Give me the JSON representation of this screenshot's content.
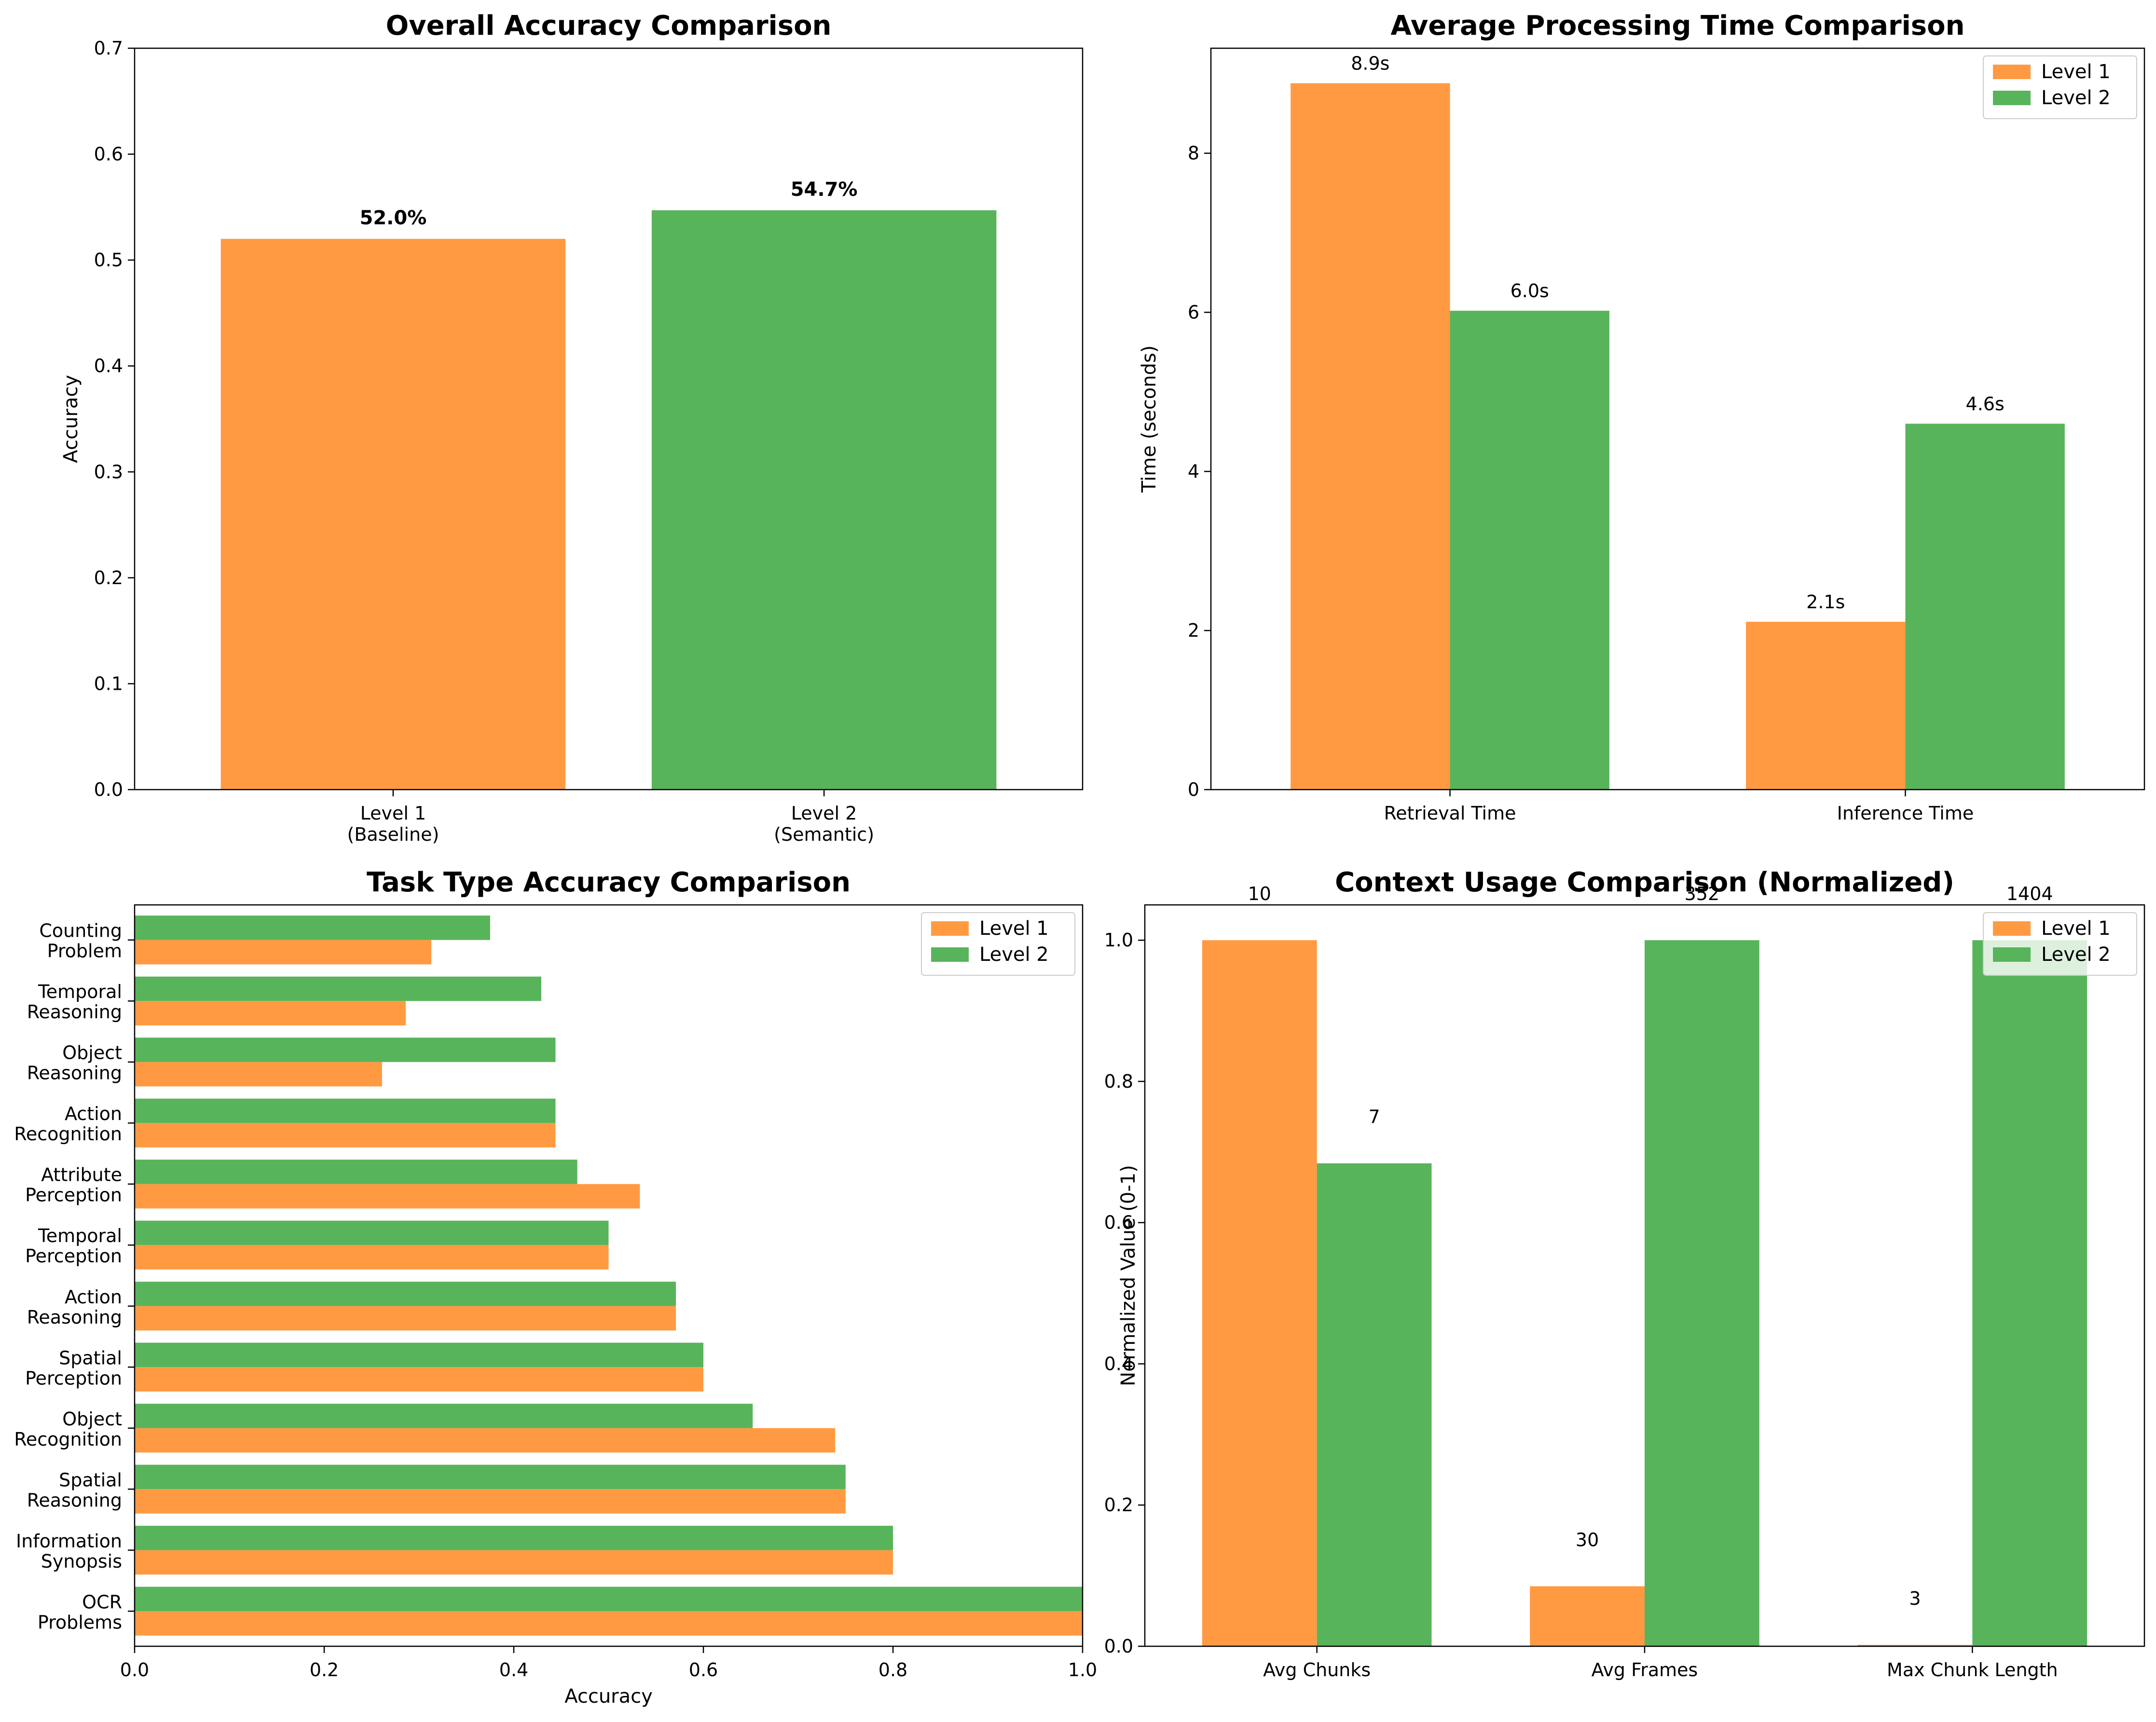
{
  "colors": {
    "level1": "#ff9a42",
    "level2": "#58b45a"
  },
  "chart_data": [
    {
      "id": "overall",
      "type": "bar",
      "title": "Overall Accuracy Comparison",
      "xlabel": "",
      "ylabel": "Accuracy",
      "categories": [
        [
          "Level 1",
          "(Baseline)"
        ],
        [
          "Level 2",
          "(Semantic)"
        ]
      ],
      "values": [
        0.52,
        0.547
      ],
      "value_labels": [
        "52.0%",
        "54.7%"
      ],
      "ylim": [
        0,
        0.7
      ],
      "yticks": [
        0.0,
        0.1,
        0.2,
        0.3,
        0.4,
        0.5,
        0.6,
        0.7
      ],
      "ytick_labels": [
        "0.0",
        "0.1",
        "0.2",
        "0.3",
        "0.4",
        "0.5",
        "0.6",
        "0.7"
      ],
      "grid": false
    },
    {
      "id": "time",
      "type": "bar",
      "title": "Average Processing Time Comparison",
      "xlabel": "",
      "ylabel": "Time (seconds)",
      "categories": [
        "Retrieval Time",
        "Inference Time"
      ],
      "series": [
        {
          "name": "Level 1",
          "values": [
            8.88,
            2.11
          ],
          "value_labels": [
            "8.9s",
            "2.1s"
          ]
        },
        {
          "name": "Level 2",
          "values": [
            6.02,
            4.6
          ],
          "value_labels": [
            "6.0s",
            "4.6s"
          ]
        }
      ],
      "ylim": [
        0,
        9.32
      ],
      "yticks": [
        0,
        2,
        4,
        6,
        8
      ],
      "ytick_labels": [
        "0",
        "2",
        "4",
        "6",
        "8"
      ],
      "legend": "top-right",
      "grid": false
    },
    {
      "id": "task",
      "type": "barh",
      "title": "Task Type Accuracy Comparison",
      "xlabel": "Accuracy",
      "ylabel": "",
      "categories": [
        [
          "Counting",
          "Problem"
        ],
        [
          "Temporal",
          "Reasoning"
        ],
        [
          "Object",
          "Reasoning"
        ],
        [
          "Action",
          "Recognition"
        ],
        [
          "Attribute",
          "Perception"
        ],
        [
          "Temporal",
          "Perception"
        ],
        [
          "Action",
          "Reasoning"
        ],
        [
          "Spatial",
          "Perception"
        ],
        [
          "Object",
          "Recognition"
        ],
        [
          "Spatial",
          "Reasoning"
        ],
        [
          "Information",
          "Synopsis"
        ],
        [
          "OCR",
          "Problems"
        ]
      ],
      "series": [
        {
          "name": "Level 1",
          "values": [
            0.313,
            0.286,
            0.261,
            0.444,
            0.533,
            0.5,
            0.571,
            0.6,
            0.739,
            0.75,
            0.8,
            1.0
          ]
        },
        {
          "name": "Level 2",
          "values": [
            0.375,
            0.429,
            0.444,
            0.444,
            0.467,
            0.5,
            0.571,
            0.6,
            0.652,
            0.75,
            0.8,
            1.0
          ]
        }
      ],
      "xlim": [
        0,
        1.0
      ],
      "xticks": [
        0.0,
        0.2,
        0.4,
        0.6,
        0.8,
        1.0
      ],
      "xtick_labels": [
        "0.0",
        "0.2",
        "0.4",
        "0.6",
        "0.8",
        "1.0"
      ],
      "legend": "top-right",
      "grid": false
    },
    {
      "id": "context",
      "type": "bar",
      "title": "Context Usage Comparison (Normalized)",
      "xlabel": "",
      "ylabel": "Normalized Value (0-1)",
      "categories": [
        "Avg Chunks",
        "Avg Frames",
        "Max Chunk Length"
      ],
      "series": [
        {
          "name": "Level 1",
          "values": [
            1.0,
            0.085,
            0.002
          ],
          "value_labels": [
            "10",
            "30",
            "3"
          ]
        },
        {
          "name": "Level 2",
          "values": [
            0.684,
            1.0,
            1.0
          ],
          "value_labels": [
            "7",
            "352",
            "1404"
          ]
        }
      ],
      "ylim": [
        0,
        1.05
      ],
      "yticks": [
        0.0,
        0.2,
        0.4,
        0.6,
        0.8,
        1.0
      ],
      "ytick_labels": [
        "0.0",
        "0.2",
        "0.4",
        "0.6",
        "0.8",
        "1.0"
      ],
      "legend": "top-right",
      "grid": false
    }
  ]
}
